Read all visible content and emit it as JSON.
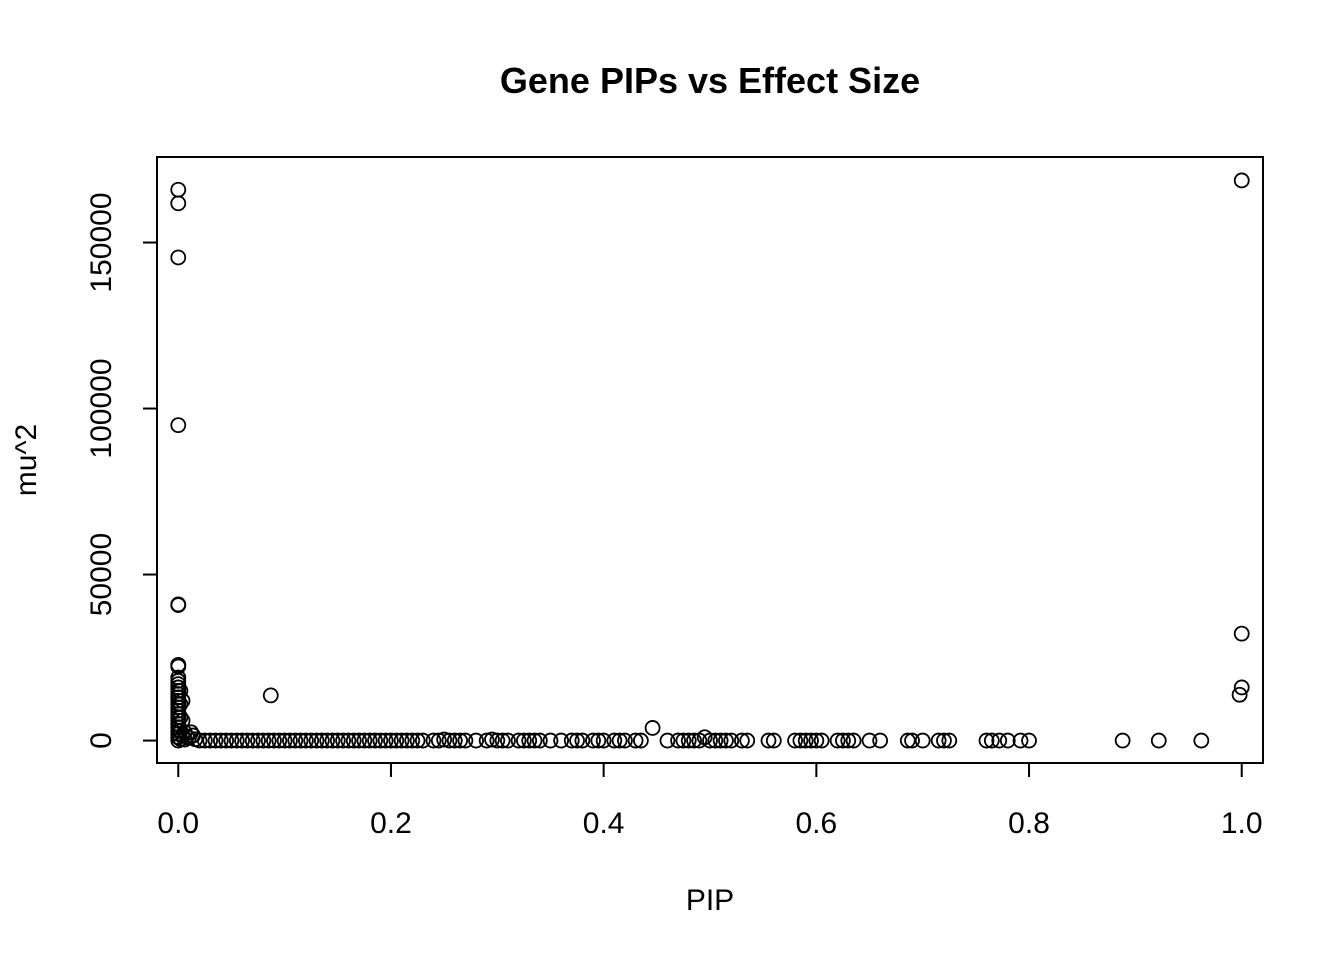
{
  "chart_data": {
    "type": "scatter",
    "title": "Gene PIPs vs Effect Size",
    "xlabel": "PIP",
    "ylabel": "mu^2",
    "xlim": [
      -0.02,
      1.02
    ],
    "ylim": [
      -6760,
      175760
    ],
    "x_ticks": [
      0.0,
      0.2,
      0.4,
      0.6,
      0.8,
      1.0
    ],
    "x_tick_labels": [
      "0.0",
      "0.2",
      "0.4",
      "0.6",
      "0.8",
      "1.0"
    ],
    "y_ticks": [
      0,
      50000,
      100000,
      150000
    ],
    "y_tick_labels": [
      "0",
      "50000",
      "100000",
      "150000"
    ],
    "grid": false,
    "legend": "none",
    "marker": "open-circle",
    "points": [
      [
        0.0,
        165900
      ],
      [
        0.0,
        161800
      ],
      [
        0.0,
        145500
      ],
      [
        0.0,
        95000
      ],
      [
        0.0,
        41000
      ],
      [
        0.0,
        40800
      ],
      [
        0.0,
        22800
      ],
      [
        0.0,
        22300
      ],
      [
        0.0,
        19000
      ],
      [
        0.0,
        18000
      ],
      [
        0.0,
        17000
      ],
      [
        0.0,
        16000
      ],
      [
        0.0,
        15000
      ],
      [
        0.0,
        14000
      ],
      [
        0.0,
        13000
      ],
      [
        0.0,
        12000
      ],
      [
        0.0,
        11000
      ],
      [
        0.0,
        10000
      ],
      [
        0.0,
        9000
      ],
      [
        0.0,
        8000
      ],
      [
        0.0,
        7000
      ],
      [
        0.0,
        6000
      ],
      [
        0.0,
        5000
      ],
      [
        0.0,
        4000
      ],
      [
        0.0,
        3000
      ],
      [
        0.0,
        2000
      ],
      [
        0.0,
        1000
      ],
      [
        0.0,
        0
      ],
      [
        0.002,
        15000
      ],
      [
        0.002,
        11000
      ],
      [
        0.002,
        7000
      ],
      [
        0.002,
        3000
      ],
      [
        0.002,
        500
      ],
      [
        0.004,
        12000
      ],
      [
        0.004,
        6000
      ],
      [
        0.004,
        1500
      ],
      [
        0.006,
        2500
      ],
      [
        0.006,
        300
      ],
      [
        0.008,
        1200
      ],
      [
        0.01,
        800
      ],
      [
        0.012,
        2500
      ],
      [
        0.014,
        1500
      ],
      [
        0.016,
        400
      ],
      [
        0.02,
        0
      ],
      [
        0.025,
        0
      ],
      [
        0.03,
        0
      ],
      [
        0.035,
        0
      ],
      [
        0.04,
        0
      ],
      [
        0.045,
        0
      ],
      [
        0.05,
        0
      ],
      [
        0.055,
        0
      ],
      [
        0.06,
        0
      ],
      [
        0.065,
        0
      ],
      [
        0.07,
        0
      ],
      [
        0.075,
        0
      ],
      [
        0.08,
        0
      ],
      [
        0.085,
        0
      ],
      [
        0.087,
        13600
      ],
      [
        0.09,
        0
      ],
      [
        0.095,
        0
      ],
      [
        0.1,
        0
      ],
      [
        0.105,
        0
      ],
      [
        0.11,
        0
      ],
      [
        0.115,
        0
      ],
      [
        0.12,
        0
      ],
      [
        0.125,
        0
      ],
      [
        0.13,
        0
      ],
      [
        0.135,
        0
      ],
      [
        0.14,
        0
      ],
      [
        0.145,
        0
      ],
      [
        0.15,
        0
      ],
      [
        0.155,
        0
      ],
      [
        0.16,
        0
      ],
      [
        0.165,
        0
      ],
      [
        0.17,
        0
      ],
      [
        0.175,
        0
      ],
      [
        0.18,
        0
      ],
      [
        0.185,
        0
      ],
      [
        0.19,
        0
      ],
      [
        0.195,
        0
      ],
      [
        0.2,
        0
      ],
      [
        0.205,
        0
      ],
      [
        0.21,
        0
      ],
      [
        0.215,
        0
      ],
      [
        0.22,
        0
      ],
      [
        0.225,
        0
      ],
      [
        0.23,
        0
      ],
      [
        0.24,
        0
      ],
      [
        0.245,
        0
      ],
      [
        0.25,
        300
      ],
      [
        0.255,
        0
      ],
      [
        0.26,
        0
      ],
      [
        0.265,
        0
      ],
      [
        0.27,
        0
      ],
      [
        0.28,
        0
      ],
      [
        0.29,
        0
      ],
      [
        0.295,
        300
      ],
      [
        0.3,
        0
      ],
      [
        0.305,
        0
      ],
      [
        0.31,
        0
      ],
      [
        0.32,
        0
      ],
      [
        0.325,
        0
      ],
      [
        0.33,
        0
      ],
      [
        0.335,
        0
      ],
      [
        0.34,
        0
      ],
      [
        0.35,
        0
      ],
      [
        0.36,
        0
      ],
      [
        0.37,
        0
      ],
      [
        0.375,
        0
      ],
      [
        0.38,
        0
      ],
      [
        0.39,
        0
      ],
      [
        0.395,
        0
      ],
      [
        0.4,
        0
      ],
      [
        0.41,
        0
      ],
      [
        0.415,
        0
      ],
      [
        0.42,
        0
      ],
      [
        0.43,
        0
      ],
      [
        0.435,
        0
      ],
      [
        0.446,
        3800
      ],
      [
        0.46,
        0
      ],
      [
        0.47,
        0
      ],
      [
        0.475,
        0
      ],
      [
        0.48,
        0
      ],
      [
        0.485,
        0
      ],
      [
        0.49,
        0
      ],
      [
        0.495,
        1000
      ],
      [
        0.5,
        0
      ],
      [
        0.505,
        0
      ],
      [
        0.51,
        0
      ],
      [
        0.515,
        0
      ],
      [
        0.52,
        0
      ],
      [
        0.53,
        0
      ],
      [
        0.535,
        0
      ],
      [
        0.555,
        0
      ],
      [
        0.56,
        0
      ],
      [
        0.58,
        0
      ],
      [
        0.585,
        0
      ],
      [
        0.59,
        0
      ],
      [
        0.595,
        0
      ],
      [
        0.6,
        0
      ],
      [
        0.605,
        0
      ],
      [
        0.62,
        0
      ],
      [
        0.625,
        0
      ],
      [
        0.63,
        0
      ],
      [
        0.635,
        0
      ],
      [
        0.65,
        0
      ],
      [
        0.66,
        0
      ],
      [
        0.686,
        0
      ],
      [
        0.69,
        0
      ],
      [
        0.7,
        0
      ],
      [
        0.715,
        0
      ],
      [
        0.72,
        0
      ],
      [
        0.725,
        0
      ],
      [
        0.76,
        0
      ],
      [
        0.765,
        0
      ],
      [
        0.772,
        0
      ],
      [
        0.78,
        0
      ],
      [
        0.792,
        0
      ],
      [
        0.8,
        0
      ],
      [
        0.888,
        0
      ],
      [
        0.922,
        0
      ],
      [
        0.962,
        0
      ],
      [
        0.998,
        13800
      ],
      [
        1.0,
        16000
      ],
      [
        1.0,
        32200
      ],
      [
        1.0,
        168700
      ]
    ]
  }
}
